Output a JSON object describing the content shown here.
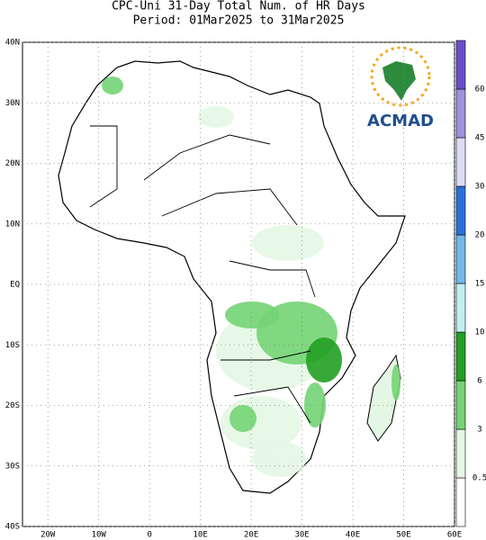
{
  "title": [
    "CPC-Uni 31-Day Total Num. of HR Days",
    "Period: 01Mar2025 to 31Mar2025"
  ],
  "map": {
    "xlim": [
      -25,
      60
    ],
    "ylim": [
      -40,
      40
    ],
    "lat_labels": [
      {
        "value": 40,
        "label": "40N"
      },
      {
        "value": 30,
        "label": "30N"
      },
      {
        "value": 20,
        "label": "20N"
      },
      {
        "value": 10,
        "label": "10N"
      },
      {
        "value": 0,
        "label": "EQ"
      },
      {
        "value": -10,
        "label": "10S"
      },
      {
        "value": -20,
        "label": "20S"
      },
      {
        "value": -30,
        "label": "30S"
      },
      {
        "value": -40,
        "label": "40S"
      }
    ],
    "lon_labels": [
      {
        "value": -20,
        "label": "20W"
      },
      {
        "value": -10,
        "label": "10W"
      },
      0,
      {
        "value": 10,
        "label": "10E"
      },
      {
        "value": 20,
        "label": "20E"
      },
      {
        "value": 30,
        "label": "30E"
      },
      {
        "value": 40,
        "label": "40E"
      },
      {
        "value": 50,
        "label": "50E"
      },
      {
        "value": 60,
        "label": "60E"
      }
    ]
  },
  "colorbar": {
    "levels": [
      0.5,
      3,
      6,
      10,
      15,
      20,
      30,
      45,
      60
    ],
    "colors": [
      "#ffffff",
      "#e4f7e4",
      "#74d474",
      "#22a022",
      "#c2eef2",
      "#70b8ea",
      "#2a70d8",
      "#dcdcf6",
      "#a090e0",
      "#6a50c8"
    ]
  },
  "logo": "ACMAD"
}
